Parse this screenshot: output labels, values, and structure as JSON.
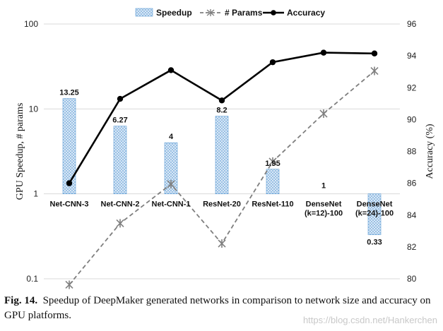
{
  "chart_data": {
    "type": "bar+line",
    "categories": [
      [
        "Net-CNN-3"
      ],
      [
        "Net-CNN-2"
      ],
      [
        "Net-CNN-1"
      ],
      [
        "ResNet-20"
      ],
      [
        "ResNet-110"
      ],
      [
        "DenseNet",
        "(k=12)-100"
      ],
      [
        "DenseNet",
        "(k=24)-100"
      ]
    ],
    "series": [
      {
        "name": "Speedup",
        "kind": "bar",
        "axis": "left",
        "values": [
          13.25,
          6.27,
          4,
          8.2,
          1.95,
          1,
          0.33
        ],
        "labels": [
          "13.25",
          "6.27",
          "4",
          "8.2",
          "1.95",
          "1",
          "0.33"
        ]
      },
      {
        "name": "# Params",
        "kind": "line-dashed",
        "axis": "left",
        "values": [
          0.085,
          0.45,
          1.3,
          0.26,
          2.4,
          8.8,
          28
        ]
      },
      {
        "name": "Accuracy",
        "kind": "line",
        "axis": "right",
        "values": [
          86,
          91.3,
          93.1,
          91.2,
          93.6,
          94.2,
          94.15
        ]
      }
    ],
    "ylabel_left": "GPU Speedup,  # params",
    "ylabel_right": "Accuracy (%)",
    "yscale_left": "log",
    "ylim_left": [
      0.1,
      100
    ],
    "yticks_left": [
      "0.1",
      "1",
      "10",
      "100"
    ],
    "ylim_right": [
      80,
      96
    ],
    "yticks_right": [
      "80",
      "82",
      "84",
      "86",
      "88",
      "90",
      "92",
      "94",
      "96"
    ],
    "legend_position": "top",
    "grid": "horizontal",
    "colors": {
      "bar_fill": "#cfe3f3",
      "bar_stroke": "#5b9bd5",
      "params": "#7f7f7f",
      "accuracy": "#000000",
      "grid": "#d9d9d9"
    }
  },
  "caption": {
    "label": "Fig. 14.",
    "text": "Speedup of DeepMaker generated networks in comparison to network size and accuracy on GPU platforms."
  },
  "watermark": "https://blog.csdn.net/Hankerchen"
}
